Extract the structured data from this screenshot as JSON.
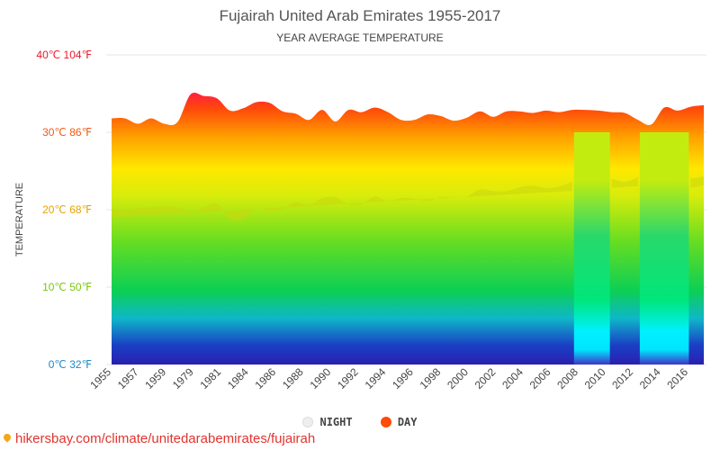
{
  "chart_data": {
    "type": "area",
    "title": "Fujairah United Arab Emirates 1955-2017",
    "subtitle": "YEAR AVERAGE TEMPERATURE",
    "ylabel": "TEMPERATURE",
    "ylim": [
      0,
      40
    ],
    "yticks": [
      {
        "value": 0,
        "label": "0℃ 32℉",
        "color": "#1e88c9"
      },
      {
        "value": 10,
        "label": "10℃ 50℉",
        "color": "#7ac70c"
      },
      {
        "value": 20,
        "label": "20℃ 68℉",
        "color": "#e8a300"
      },
      {
        "value": 30,
        "label": "30℃ 86℉",
        "color": "#f05a14"
      },
      {
        "value": 40,
        "label": "40℃ 104℉",
        "color": "#e8192c"
      }
    ],
    "xtick_labels": [
      "1955",
      "1957",
      "1959",
      "1979",
      "1981",
      "1984",
      "1986",
      "1988",
      "1990",
      "1992",
      "1994",
      "1996",
      "1998",
      "2000",
      "2002",
      "2004",
      "2006",
      "2008",
      "2010",
      "2012",
      "2014",
      "2016"
    ],
    "x": [
      "1955",
      "1956",
      "1957",
      "1958",
      "1959",
      "1960",
      "1978",
      "1979",
      "1980",
      "1981",
      "1982",
      "1983",
      "1984",
      "1985",
      "1986",
      "1987",
      "1988",
      "1989",
      "1990",
      "1991",
      "1992",
      "1993",
      "1994",
      "1995",
      "1996",
      "1997",
      "1998",
      "1999",
      "2000",
      "2001",
      "2002",
      "2003",
      "2004",
      "2005",
      "2006",
      "2007",
      "2008",
      "2009",
      "2010",
      "2011",
      "2012",
      "2013",
      "2014",
      "2015",
      "2016",
      "2017"
    ],
    "series": [
      {
        "name": "DAY",
        "color": "#ff4a0a",
        "values": [
          31.8,
          31.8,
          31.1,
          31.8,
          31.1,
          31.3,
          34.9,
          34.7,
          34.4,
          32.8,
          33.1,
          33.9,
          33.8,
          32.7,
          32.4,
          31.6,
          32.9,
          31.4,
          32.9,
          32.6,
          33.2,
          32.6,
          31.6,
          31.6,
          32.3,
          32.1,
          31.5,
          31.9,
          32.7,
          32.0,
          32.7,
          32.7,
          32.5,
          32.8,
          32.6,
          32.9,
          32.9,
          32.8,
          32.6,
          32.5,
          31.6,
          31.0,
          33.2,
          32.8,
          33.3,
          33.5
        ]
      },
      {
        "name": "NIGHT",
        "color": "#eeeeee",
        "values": [
          20.2,
          20.0,
          20.2,
          20.3,
          20.5,
          20.3,
          19.8,
          20.3,
          20.8,
          18.8,
          18.8,
          20.1,
          19.9,
          20.1,
          21.0,
          20.6,
          21.5,
          21.6,
          20.7,
          20.7,
          21.7,
          21.0,
          21.5,
          21.4,
          21.1,
          21.6,
          21.6,
          21.7,
          22.6,
          22.4,
          22.4,
          22.9,
          23.1,
          22.8,
          23.0,
          23.6,
          null,
          null,
          24.0,
          23.6,
          24.2,
          null,
          null,
          null,
          24.0,
          24.3
        ]
      }
    ],
    "legend": "bottom-center",
    "grid": true
  },
  "legend_items": [
    {
      "label": "NIGHT"
    },
    {
      "label": "DAY"
    }
  ],
  "footer": {
    "text": "hikersbay.com/climate/unitedarabemirates/fujairah"
  }
}
